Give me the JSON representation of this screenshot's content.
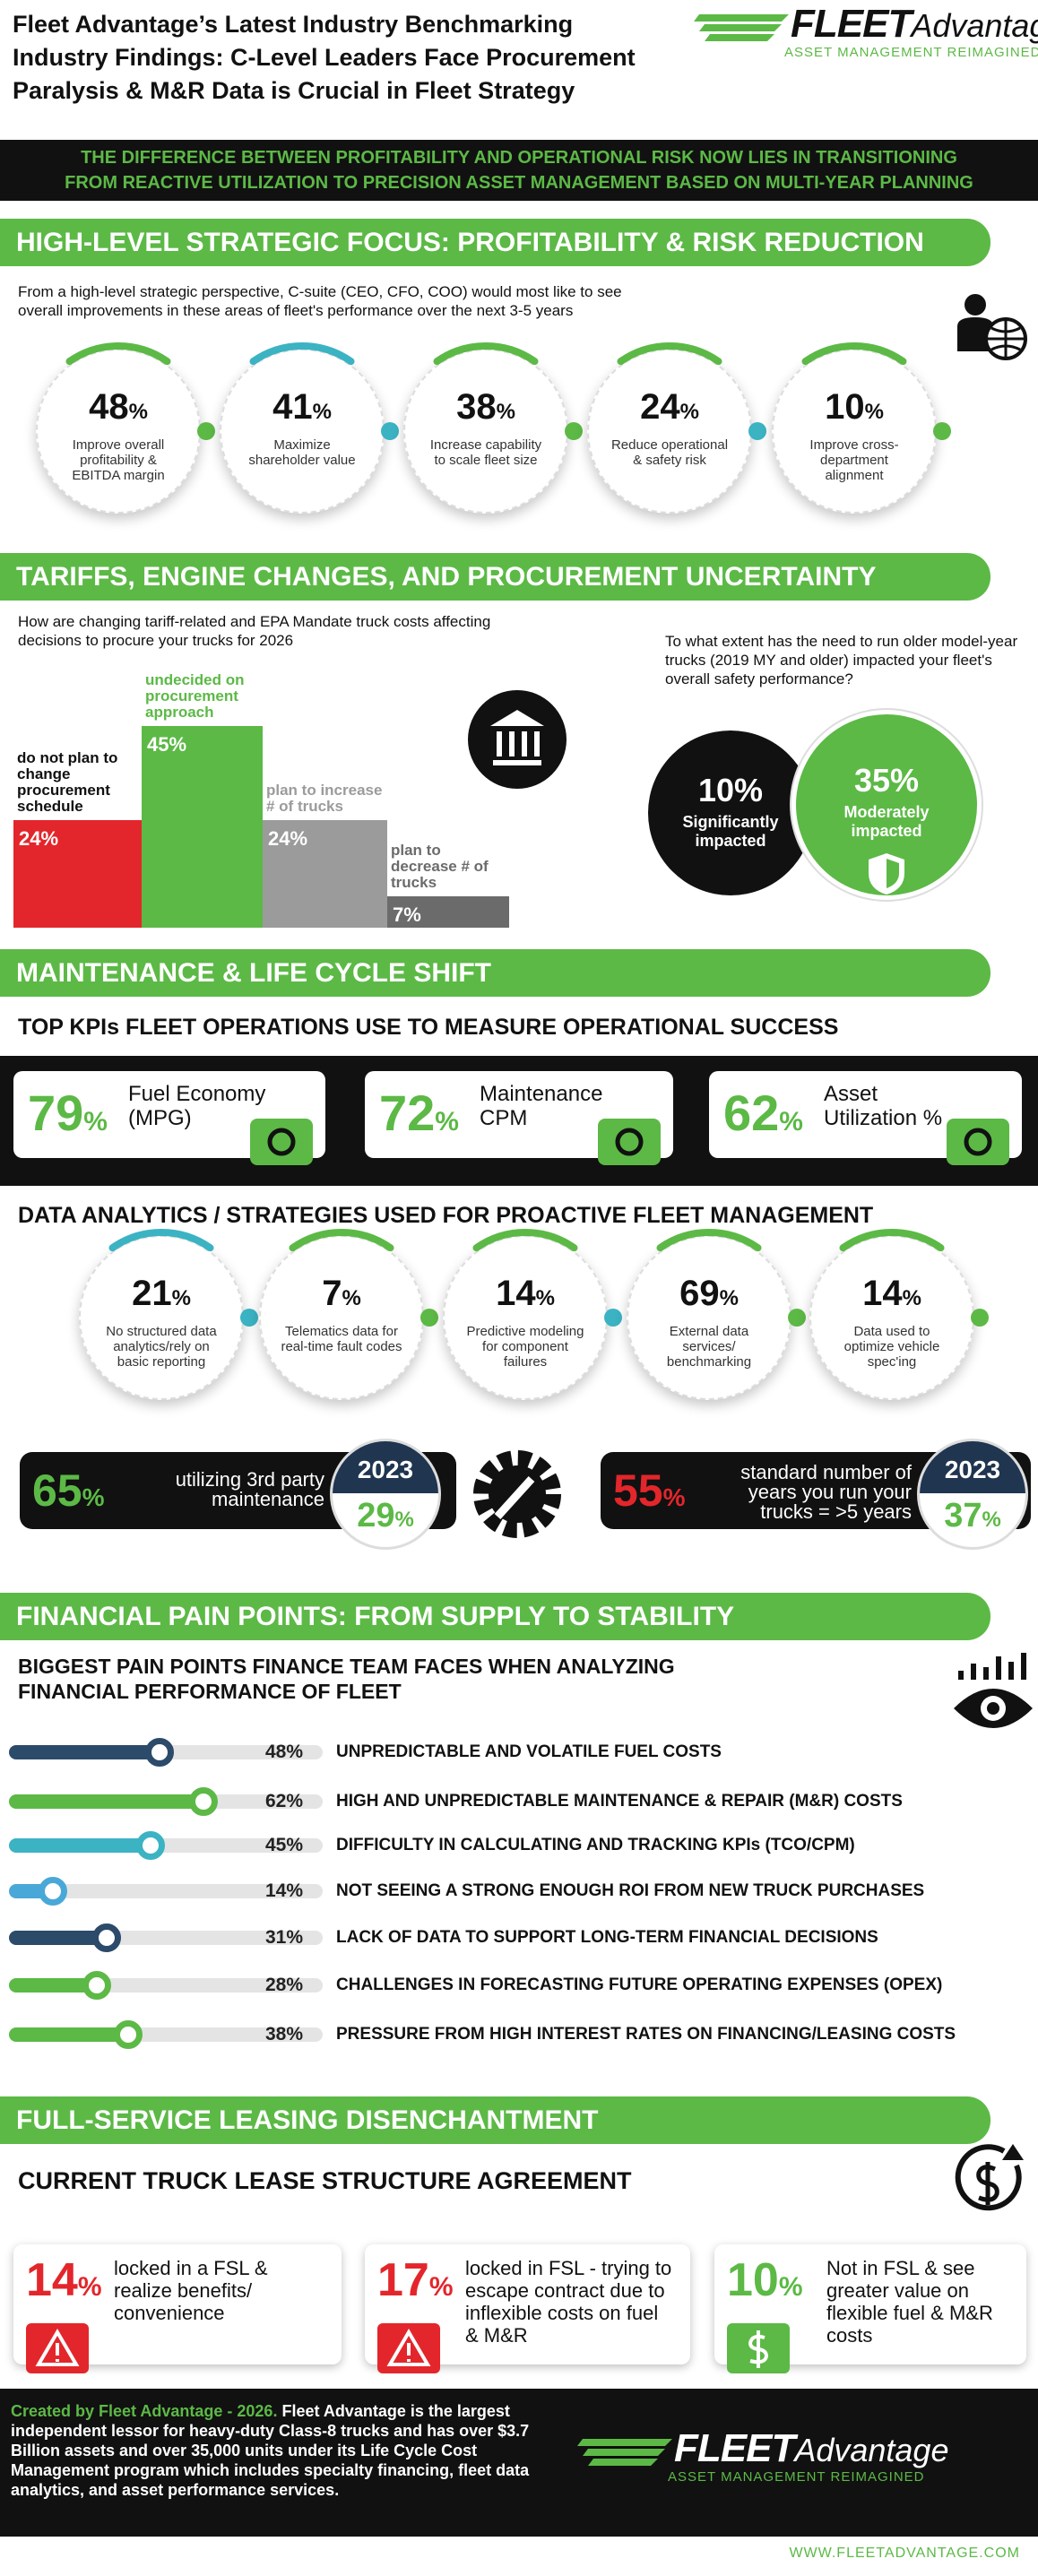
{
  "header": {
    "title": [
      "Fleet Advantage’s Latest Industry Benchmarking",
      "Industry Findings: C-Level Leaders Face Procurement",
      "Paralysis & M&R Data is Crucial in Fleet Strategy"
    ],
    "logo": {
      "brand": "FLEET",
      "brand2": "Advantage",
      "tagline": "ASSET MANAGEMENT REIMAGINED"
    }
  },
  "banner": [
    "THE DIFFERENCE BETWEEN PROFITABILITY AND OPERATIONAL RISK NOW LIES IN TRANSITIONING",
    "FROM REACTIVE UTILIZATION TO PRECISION ASSET MANAGEMENT BASED ON MULTI-YEAR PLANNING"
  ],
  "strategic": {
    "heading": "HIGH-LEVEL STRATEGIC FOCUS: PROFITABILITY & RISK REDUCTION",
    "intro": "From a high-level strategic perspective, C-suite (CEO, CFO, COO) would most like to see overall improvements in these areas of fleet's performance over the next 3-5 years",
    "items": [
      {
        "value": 48,
        "unit": "%",
        "label": "Improve overall profitability & EBITDA margin"
      },
      {
        "value": 41,
        "unit": "%",
        "label": "Maximize shareholder value"
      },
      {
        "value": 38,
        "unit": "%",
        "label": "Increase capability to scale fleet size"
      },
      {
        "value": 24,
        "unit": "%",
        "label": "Reduce operational & safety risk"
      },
      {
        "value": 10,
        "unit": "%",
        "label": "Improve cross-department alignment"
      }
    ]
  },
  "tariffs": {
    "heading": "TARIFFS, ENGINE CHANGES, AND PROCUREMENT UNCERTAINTY",
    "question": "How are changing tariff-related and EPA Mandate truck costs affecting decisions to procure your trucks for 2026",
    "bars": [
      {
        "label": "do not plan to change procurement schedule",
        "value": 24,
        "unit": "%",
        "color": "#e3262b"
      },
      {
        "label": "undecided on procurement approach",
        "value": 45,
        "unit": "%",
        "color": "#5cb946"
      },
      {
        "label": "plan to increase # of trucks",
        "value": 24,
        "unit": "%",
        "color": "#9b9b9b"
      },
      {
        "label": "plan to decrease # of trucks",
        "value": 7,
        "unit": "%",
        "color": "#6b6b6b"
      }
    ],
    "safety": {
      "question": "To what extent has the need to run older model-year trucks (2019 MY and older) impacted your fleet's overall safety performance?",
      "items": [
        {
          "value": 10,
          "unit": "%",
          "label": "Significantly impacted",
          "color": "#111111"
        },
        {
          "value": 35,
          "unit": "%",
          "label": "Moderately impacted",
          "color": "#5cb946"
        }
      ]
    }
  },
  "maintenance": {
    "heading": "MAINTENANCE & LIFE CYCLE SHIFT",
    "kpi_title": "TOP KPIs FLEET OPERATIONS USE TO MEASURE OPERATIONAL SUCCESS",
    "kpis": [
      {
        "value": 79,
        "unit": "%",
        "label": "Fuel Economy (MPG)"
      },
      {
        "value": 72,
        "unit": "%",
        "label": "Maintenance CPM"
      },
      {
        "value": 62,
        "unit": "%",
        "label": "Asset Utilization %"
      }
    ],
    "analytics_title": "DATA ANALYTICS / STRATEGIES USED FOR PROACTIVE FLEET MANAGEMENT",
    "analytics": [
      {
        "value": 21,
        "unit": "%",
        "label": "No structured data analytics/rely on basic reporting"
      },
      {
        "value": 7,
        "unit": "%",
        "label": "Telematics data for real-time fault codes"
      },
      {
        "value": 14,
        "unit": "%",
        "label": "Predictive modeling for component failures"
      },
      {
        "value": 69,
        "unit": "%",
        "label": "External data services/ benchmarking"
      },
      {
        "value": 14,
        "unit": "%",
        "label": "Data used to optimize vehicle spec'ing"
      }
    ],
    "stats": [
      {
        "value": 65,
        "unit": "%",
        "label": "utilizing 3rd party maintenance",
        "year": "2023",
        "year_value": 29,
        "year_unit": "%",
        "color": "#5cb946"
      },
      {
        "value": 55,
        "unit": "%",
        "label": "standard number of years you run your trucks = >5 years",
        "year": "2023",
        "year_value": 37,
        "year_unit": "%",
        "color": "#e3262b"
      }
    ]
  },
  "financial": {
    "heading": "FINANCIAL PAIN POINTS: FROM SUPPLY TO STABILITY",
    "subtitle": "BIGGEST PAIN POINTS FINANCE TEAM FACES WHEN ANALYZING FINANCIAL PERFORMANCE OF FLEET",
    "pain_points": [
      {
        "value": 48,
        "unit": "%",
        "label": "UNPREDICTABLE AND VOLATILE FUEL COSTS",
        "color": "#2c4a6a"
      },
      {
        "value": 62,
        "unit": "%",
        "label": "HIGH AND UNPREDICTABLE MAINTENANCE & REPAIR (M&R) COSTS",
        "color": "#5cb946"
      },
      {
        "value": 45,
        "unit": "%",
        "label": "DIFFICULTY IN CALCULATING AND TRACKING KPIs (TCO/CPM)",
        "color": "#3bb3c3"
      },
      {
        "value": 14,
        "unit": "%",
        "label": "NOT SEEING A STRONG ENOUGH ROI FROM NEW TRUCK PURCHASES",
        "color": "#4aa8d8"
      },
      {
        "value": 31,
        "unit": "%",
        "label": "LACK OF DATA TO SUPPORT LONG-TERM FINANCIAL DECISIONS",
        "color": "#2c4a6a"
      },
      {
        "value": 28,
        "unit": "%",
        "label": "CHALLENGES IN FORECASTING FUTURE OPERATING EXPENSES (OPEX)",
        "color": "#5cb946"
      },
      {
        "value": 38,
        "unit": "%",
        "label": "PRESSURE FROM HIGH INTEREST RATES ON FINANCING/LEASING COSTS",
        "color": "#5cb946"
      }
    ]
  },
  "leasing": {
    "heading": "FULL-SERVICE LEASING DISENCHANTMENT",
    "subtitle": "CURRENT TRUCK LEASE STRUCTURE AGREEMENT",
    "items": [
      {
        "value": 14,
        "unit": "%",
        "label": "locked in a FSL & realize benefits/ convenience",
        "color": "#e3262b"
      },
      {
        "value": 17,
        "unit": "%",
        "label": "locked in FSL - trying to escape contract due to inflexible costs on fuel & M&R",
        "color": "#e3262b"
      },
      {
        "value": 10,
        "unit": "%",
        "label": "Not in FSL & see greater value on flexible fuel & M&R costs",
        "color": "#5cb946"
      }
    ]
  },
  "footer": {
    "lead": "Created by Fleet Advantage - 2026.",
    "text": "Fleet Advantage is the largest independent lessor for heavy-duty Class-8 trucks and has over $3.7 Billion assets and over 35,000 units under its Life Cycle Cost Management program which includes specialty financing, fleet data analytics, and asset performance services.",
    "logo": {
      "brand": "FLEET",
      "brand2": "Advantage",
      "tagline": "ASSET MANAGEMENT REIMAGINED"
    },
    "website": "WWW.FLEETADVANTAGE.COM"
  }
}
